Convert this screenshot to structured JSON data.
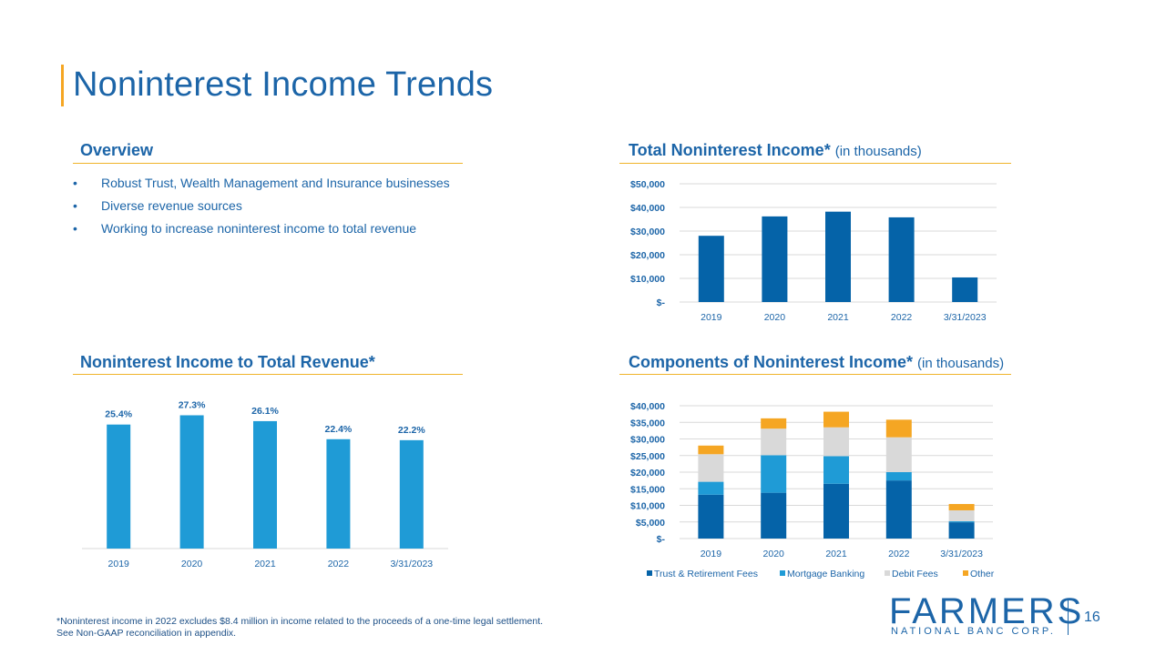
{
  "page": {
    "title": "Noninterest Income Trends",
    "page_number": "16",
    "footnote_line1": "*Noninterest income in 2022 excludes $8.4 million in income related to the proceeds of a one-time legal settlement.",
    "footnote_line2": "See Non-GAAP reconciliation in appendix."
  },
  "overview": {
    "heading": "Overview",
    "bullets": [
      "Robust Trust, Wealth Management and Insurance businesses",
      "Diverse revenue sources",
      "Working to increase noninterest income to total revenue"
    ]
  },
  "logo": {
    "word": "FARMERS",
    "sub": "NATIONAL BANC CORP."
  },
  "colors": {
    "dark_blue": "#0563a8",
    "mid_blue": "#1f9bd6",
    "light_gray": "#d9d9d9",
    "orange": "#f5a623",
    "gold_rule": "#f0b429"
  },
  "chart_data": [
    {
      "id": "total",
      "type": "bar",
      "title": "Total Noninterest Income*",
      "title_suffix": "(in thousands)",
      "categories": [
        "2019",
        "2020",
        "2021",
        "2022",
        "3/31/2023"
      ],
      "values": [
        28000,
        36200,
        38200,
        35800,
        10400
      ],
      "ylim": [
        0,
        50000
      ],
      "yticks": [
        0,
        10000,
        20000,
        30000,
        40000,
        50000
      ],
      "ytick_labels": [
        "$-",
        "$10,000",
        "$20,000",
        "$30,000",
        "$40,000",
        "$50,000"
      ],
      "grid": true
    },
    {
      "id": "ratio",
      "type": "bar",
      "title": "Noninterest Income to Total Revenue*",
      "categories": [
        "2019",
        "2020",
        "2021",
        "2022",
        "3/31/2023"
      ],
      "values": [
        25.4,
        27.3,
        26.1,
        22.4,
        22.2
      ],
      "data_labels": [
        "25.4%",
        "27.3%",
        "26.1%",
        "22.4%",
        "22.2%"
      ],
      "ylim": [
        0,
        30
      ],
      "grid": false
    },
    {
      "id": "components",
      "type": "bar",
      "stacked": true,
      "title": "Components of Noninterest Income*",
      "title_suffix": "(in thousands)",
      "categories": [
        "2019",
        "2020",
        "2021",
        "2022",
        "3/31/2023"
      ],
      "series": [
        {
          "name": "Trust & Retirement Fees",
          "values": [
            13200,
            13800,
            16500,
            17500,
            4900
          ]
        },
        {
          "name": "Mortgage Banking",
          "values": [
            3900,
            11300,
            8300,
            2500,
            300
          ]
        },
        {
          "name": "Debit Fees",
          "values": [
            8300,
            8000,
            8700,
            10500,
            3300
          ]
        },
        {
          "name": "Other",
          "values": [
            2600,
            3100,
            4700,
            5300,
            1900
          ]
        }
      ],
      "ylim": [
        0,
        40000
      ],
      "yticks": [
        0,
        5000,
        10000,
        15000,
        20000,
        25000,
        30000,
        35000,
        40000
      ],
      "ytick_labels": [
        "$-",
        "$5,000",
        "$10,000",
        "$15,000",
        "$20,000",
        "$25,000",
        "$30,000",
        "$35,000",
        "$40,000"
      ],
      "legend": "bottom",
      "grid": true
    }
  ]
}
